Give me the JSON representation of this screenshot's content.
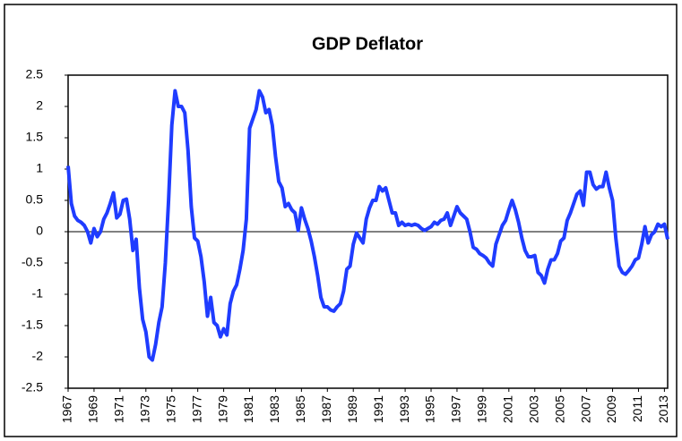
{
  "chart_data": {
    "type": "line",
    "title": "GDP Deflator",
    "x": [
      1967,
      1967.25,
      1967.5,
      1967.75,
      1968,
      1968.25,
      1968.5,
      1968.75,
      1969,
      1969.25,
      1969.5,
      1969.75,
      1970,
      1970.25,
      1970.5,
      1970.75,
      1971,
      1971.25,
      1971.5,
      1971.75,
      1972,
      1972.25,
      1972.5,
      1972.75,
      1973,
      1973.25,
      1973.5,
      1973.75,
      1974,
      1974.25,
      1974.5,
      1974.75,
      1975,
      1975.25,
      1975.5,
      1975.75,
      1976,
      1976.25,
      1976.5,
      1976.75,
      1977,
      1977.25,
      1977.5,
      1977.75,
      1978,
      1978.25,
      1978.5,
      1978.75,
      1979,
      1979.25,
      1979.5,
      1979.75,
      1980,
      1980.25,
      1980.5,
      1980.75,
      1981,
      1981.25,
      1981.5,
      1981.75,
      1982,
      1982.25,
      1982.5,
      1982.75,
      1983,
      1983.25,
      1983.5,
      1983.75,
      1984,
      1984.25,
      1984.5,
      1984.75,
      1985,
      1985.25,
      1985.5,
      1985.75,
      1986,
      1986.25,
      1986.5,
      1986.75,
      1987,
      1987.25,
      1987.5,
      1987.75,
      1988,
      1988.25,
      1988.5,
      1988.75,
      1989,
      1989.25,
      1989.5,
      1989.75,
      1990,
      1990.25,
      1990.5,
      1990.75,
      1991,
      1991.25,
      1991.5,
      1991.75,
      1992,
      1992.25,
      1992.5,
      1992.75,
      1993,
      1993.25,
      1993.5,
      1993.75,
      1994,
      1994.25,
      1994.5,
      1994.75,
      1995,
      1995.25,
      1995.5,
      1995.75,
      1996,
      1996.25,
      1996.5,
      1996.75,
      1997,
      1997.25,
      1997.5,
      1997.75,
      1998,
      1998.25,
      1998.5,
      1998.75,
      1999,
      1999.25,
      1999.5,
      1999.75,
      2000,
      2000.25,
      2000.5,
      2000.75,
      2001,
      2001.25,
      2001.5,
      2001.75,
      2002,
      2002.25,
      2002.5,
      2002.75,
      2003,
      2003.25,
      2003.5,
      2003.75,
      2004,
      2004.25,
      2004.5,
      2004.75,
      2005,
      2005.25,
      2005.5,
      2005.75,
      2006,
      2006.25,
      2006.5,
      2006.75,
      2007,
      2007.25,
      2007.5,
      2007.75,
      2008,
      2008.25,
      2008.5,
      2008.75,
      2009,
      2009.25,
      2009.5,
      2009.75,
      2010,
      2010.25,
      2010.5,
      2010.75,
      2011,
      2011.25,
      2011.5,
      2011.75,
      2012,
      2012.25,
      2012.5,
      2012.75,
      2013,
      2013.25
    ],
    "series": [
      {
        "color": "#1f3cff",
        "values": [
          1.05,
          0.45,
          0.25,
          0.18,
          0.15,
          0.1,
          0.0,
          -0.18,
          0.05,
          -0.08,
          0.0,
          0.2,
          0.3,
          0.45,
          0.62,
          0.22,
          0.28,
          0.5,
          0.52,
          0.2,
          -0.3,
          -0.12,
          -0.9,
          -1.4,
          -1.6,
          -2.0,
          -2.05,
          -1.8,
          -1.45,
          -1.2,
          -0.5,
          0.5,
          1.7,
          2.25,
          2.0,
          2.0,
          1.9,
          1.3,
          0.4,
          -0.1,
          -0.15,
          -0.4,
          -0.8,
          -1.35,
          -1.05,
          -1.45,
          -1.5,
          -1.68,
          -1.55,
          -1.65,
          -1.15,
          -0.95,
          -0.85,
          -0.6,
          -0.3,
          0.2,
          1.65,
          1.8,
          1.95,
          2.25,
          2.15,
          1.9,
          1.95,
          1.7,
          1.2,
          0.8,
          0.7,
          0.4,
          0.45,
          0.35,
          0.3,
          0.02,
          0.38,
          0.2,
          0.05,
          -0.15,
          -0.4,
          -0.7,
          -1.05,
          -1.2,
          -1.2,
          -1.25,
          -1.27,
          -1.2,
          -1.15,
          -0.95,
          -0.6,
          -0.55,
          -0.2,
          -0.02,
          -0.1,
          -0.18,
          0.2,
          0.38,
          0.5,
          0.5,
          0.72,
          0.65,
          0.7,
          0.5,
          0.3,
          0.3,
          0.1,
          0.15,
          0.1,
          0.12,
          0.1,
          0.12,
          0.1,
          0.05,
          0.02,
          0.05,
          0.08,
          0.15,
          0.12,
          0.18,
          0.2,
          0.3,
          0.1,
          0.25,
          0.4,
          0.3,
          0.25,
          0.2,
          0.0,
          -0.25,
          -0.28,
          -0.35,
          -0.38,
          -0.42,
          -0.5,
          -0.55,
          -0.2,
          -0.05,
          0.1,
          0.18,
          0.35,
          0.5,
          0.35,
          0.15,
          -0.1,
          -0.3,
          -0.4,
          -0.4,
          -0.38,
          -0.65,
          -0.7,
          -0.82,
          -0.6,
          -0.45,
          -0.45,
          -0.35,
          -0.15,
          -0.1,
          0.18,
          0.3,
          0.45,
          0.6,
          0.65,
          0.42,
          0.95,
          0.95,
          0.75,
          0.68,
          0.72,
          0.72,
          0.95,
          0.7,
          0.5,
          -0.1,
          -0.55,
          -0.65,
          -0.68,
          -0.62,
          -0.55,
          -0.45,
          -0.42,
          -0.2,
          0.08,
          -0.18,
          -0.05,
          0.0,
          0.12,
          0.08,
          0.12,
          -0.12
        ]
      }
    ],
    "xlim": [
      1967,
      2013.25
    ],
    "xticks": [
      1967,
      1969,
      1971,
      1973,
      1975,
      1977,
      1979,
      1981,
      1983,
      1985,
      1987,
      1989,
      1991,
      1993,
      1995,
      1997,
      1999,
      2001,
      2003,
      2005,
      2007,
      2009,
      2011,
      2013
    ],
    "ylim": [
      -2.5,
      2.5
    ],
    "yticks": [
      -2.5,
      -2,
      -1.5,
      -1,
      -0.5,
      0,
      0.5,
      1,
      1.5,
      2,
      2.5
    ],
    "grid": false
  }
}
